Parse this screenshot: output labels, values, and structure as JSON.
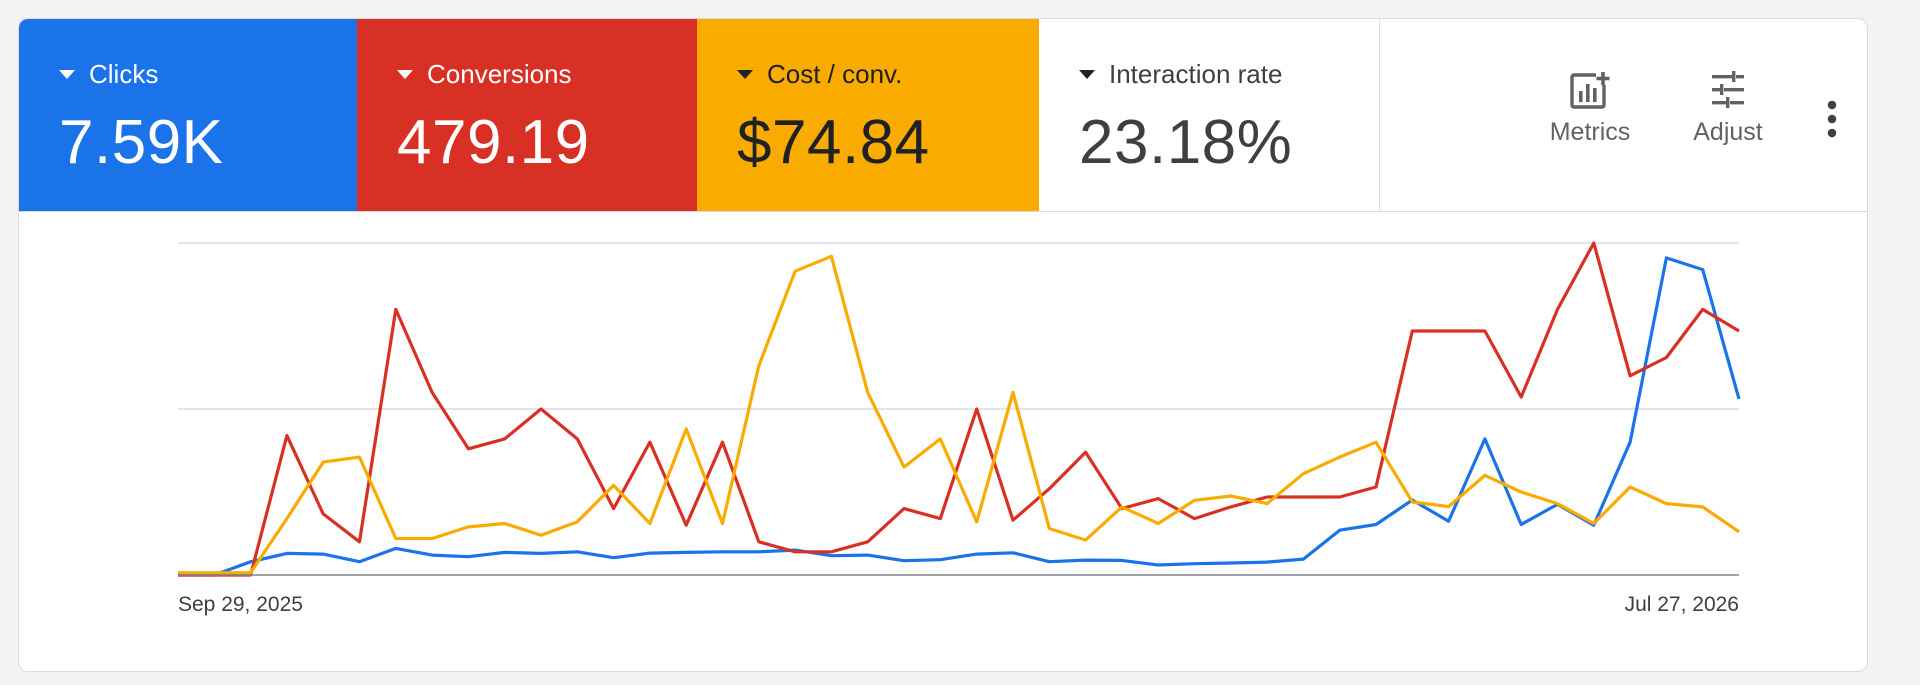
{
  "scorecards": [
    {
      "id": "clicks",
      "label": "Clicks",
      "value": "7.59K",
      "color": "#1a73e8"
    },
    {
      "id": "conversions",
      "label": "Conversions",
      "value": "479.19",
      "color": "#d93025"
    },
    {
      "id": "cost_per_conv",
      "label": "Cost / conv.",
      "value": "$74.84",
      "color": "#f9ab00"
    },
    {
      "id": "interaction_rate",
      "label": "Interaction rate",
      "value": "23.18%",
      "color": "#ffffff"
    }
  ],
  "toolbar": {
    "metrics_label": "Metrics",
    "adjust_label": "Adjust",
    "metrics_icon": "chart-add-icon",
    "adjust_icon": "tune-icon",
    "more_icon": "more-vert-icon"
  },
  "chart_data": {
    "type": "line",
    "x_start_label": "Sep 29, 2025",
    "x_end_label": "Jul 27, 2026",
    "grid": true,
    "ylim": [
      0,
      100
    ],
    "series": [
      {
        "color": "#1a73e8",
        "values": [
          0,
          0,
          4,
          6.5,
          6.3,
          4,
          8,
          6,
          5.5,
          6.8,
          6.5,
          7,
          5.2,
          6.6,
          6.8,
          7,
          7,
          7.5,
          5.8,
          6,
          4.3,
          4.6,
          6.3,
          6.7,
          4,
          4.5,
          4.4,
          3,
          3.4,
          3.6,
          3.9,
          4.8,
          13.5,
          15.2,
          22.6,
          16.2,
          41,
          15.2,
          21.3,
          15,
          40,
          95.5,
          92,
          53
        ]
      },
      {
        "color": "#d93025",
        "values": [
          0,
          0,
          0,
          42,
          18.4,
          10,
          80,
          55,
          38,
          41,
          50,
          41,
          20,
          40,
          15,
          40,
          10,
          7,
          7,
          10,
          20,
          17,
          50,
          16.5,
          26,
          37,
          20,
          23,
          17,
          20.5,
          23.5,
          23.5,
          23.5,
          26.5,
          73.5,
          73.5,
          73.5,
          53.6,
          80,
          100,
          60,
          65.5,
          80,
          73.5
        ]
      },
      {
        "color": "#f9ab00",
        "values": [
          0.7,
          0.7,
          0.7,
          17,
          34,
          35.5,
          11,
          11,
          14.5,
          15.5,
          12,
          16,
          27,
          15.5,
          44,
          15.5,
          63,
          91.5,
          96,
          55,
          32.5,
          41,
          16,
          55,
          14,
          10.5,
          20.5,
          15.5,
          22.5,
          23.8,
          21.5,
          30.5,
          35.5,
          40,
          22,
          20.6,
          30,
          25,
          21.5,
          15.5,
          26.5,
          21.5,
          20.5,
          13
        ]
      }
    ]
  }
}
